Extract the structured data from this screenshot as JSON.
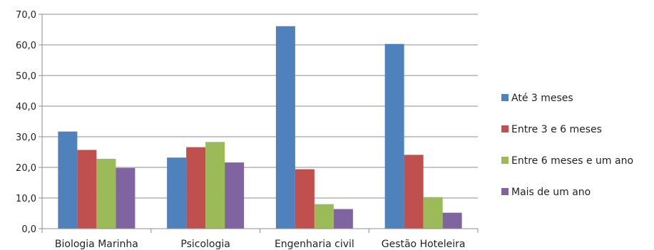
{
  "chart_data": {
    "type": "bar",
    "categories": [
      "Biologia Marinha",
      "Psicologia",
      "Engenharia civil",
      "Gestão Hoteleira"
    ],
    "series": [
      {
        "name": "Até 3 meses",
        "values": [
          31.7,
          23.2,
          66.1,
          60.3
        ],
        "color": "#4F81BD"
      },
      {
        "name": "Entre 3 e 6 meses",
        "values": [
          25.7,
          26.6,
          19.4,
          24.1
        ],
        "color": "#C0504D"
      },
      {
        "name": "Entre 6 meses e um ano",
        "values": [
          22.8,
          28.3,
          8.0,
          10.3
        ],
        "color": "#9BBB59"
      },
      {
        "name": "Mais de um ano",
        "values": [
          19.8,
          21.6,
          6.4,
          5.2
        ],
        "color": "#8064A2"
      }
    ],
    "yticks": [
      "0,0",
      "10,0",
      "20,0",
      "30,0",
      "40,0",
      "50,0",
      "60,0",
      "70,0"
    ],
    "ylim": [
      0,
      70
    ],
    "grid": true,
    "legend": "right"
  }
}
